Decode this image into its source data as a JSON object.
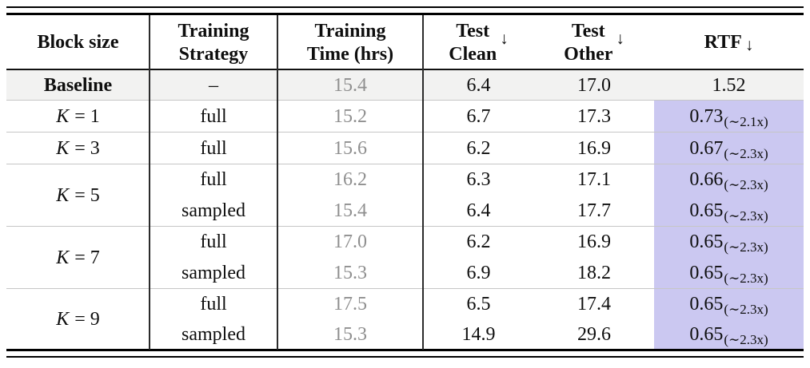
{
  "header": {
    "block": "Block size",
    "strategy": [
      "Training",
      "Strategy"
    ],
    "time": [
      "Training",
      "Time (hrs)"
    ],
    "clean": [
      "Test",
      "Clean"
    ],
    "other": [
      "Test",
      "Other"
    ],
    "rtf": "RTF",
    "down_arrow": "↓"
  },
  "rows": [
    {
      "key": "baseline",
      "block": "Baseline",
      "strategy": "–",
      "time": "15.4",
      "clean": "6.4",
      "other": "17.0",
      "rtf": "1.52",
      "rtf_sub": ""
    },
    {
      "key": "k1-full",
      "block_k": "K",
      "block_eq": "= 1",
      "strategy": "full",
      "time": "15.2",
      "clean": "6.7",
      "other": "17.3",
      "rtf": "0.73",
      "rtf_sub": "(∼2.1x)"
    },
    {
      "key": "k3-full",
      "block_k": "K",
      "block_eq": "= 3",
      "strategy": "full",
      "time": "15.6",
      "clean": "6.2",
      "other": "16.9",
      "rtf": "0.67",
      "rtf_sub": "(∼2.3x)"
    },
    {
      "key": "k5-full",
      "block_k": "K",
      "block_eq": "= 5",
      "strategy": "full",
      "time": "16.2",
      "clean": "6.3",
      "other": "17.1",
      "rtf": "0.66",
      "rtf_sub": "(∼2.3x)"
    },
    {
      "key": "k5-sampled",
      "strategy": "sampled",
      "time": "15.4",
      "clean": "6.4",
      "other": "17.7",
      "rtf": "0.65",
      "rtf_sub": "(∼2.3x)"
    },
    {
      "key": "k7-full",
      "block_k": "K",
      "block_eq": "= 7",
      "strategy": "full",
      "time": "17.0",
      "clean": "6.2",
      "other": "16.9",
      "rtf": "0.65",
      "rtf_sub": "(∼2.3x)"
    },
    {
      "key": "k7-sampled",
      "strategy": "sampled",
      "time": "15.3",
      "clean": "6.9",
      "other": "18.2",
      "rtf": "0.65",
      "rtf_sub": "(∼2.3x)"
    },
    {
      "key": "k9-full",
      "block_k": "K",
      "block_eq": "= 9",
      "strategy": "full",
      "time": "17.5",
      "clean": "6.5",
      "other": "17.4",
      "rtf": "0.65",
      "rtf_sub": "(∼2.3x)"
    },
    {
      "key": "k9-sampled",
      "strategy": "sampled",
      "time": "15.3",
      "clean": "14.9",
      "other": "29.6",
      "rtf": "0.65",
      "rtf_sub": "(∼2.3x)"
    }
  ],
  "colors": {
    "rtf_highlight": "#cbc8f1",
    "baseline_row_bg": "#f2f2f1",
    "muted_time_text": "#8f8f8f",
    "rule_black": "#000000",
    "rule_gray": "#c6c6c6"
  }
}
